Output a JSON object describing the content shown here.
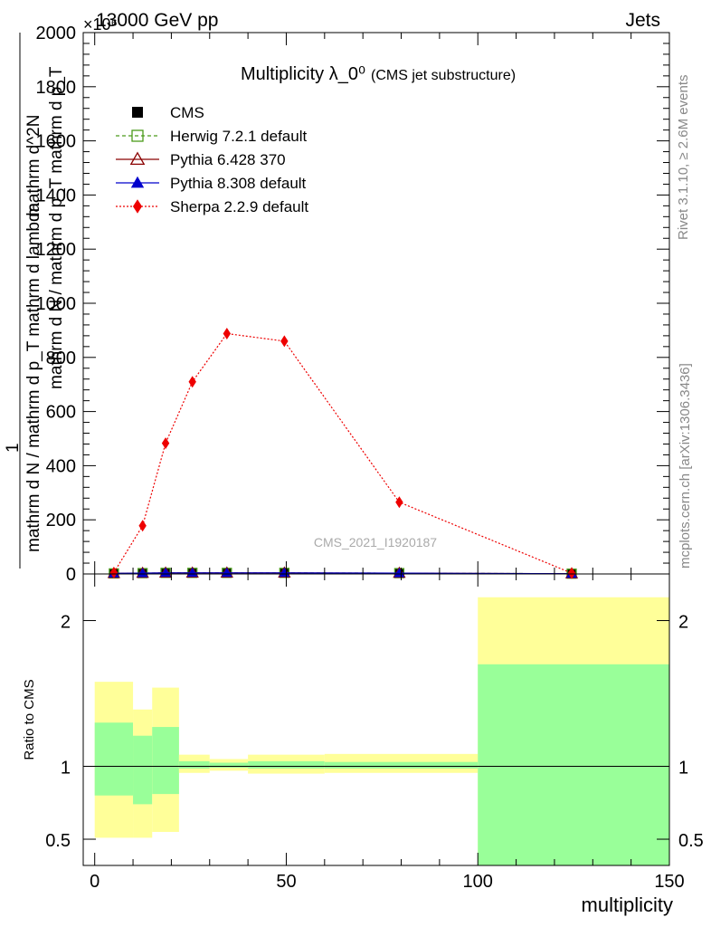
{
  "header": {
    "left": "13000 GeV pp",
    "right": "Jets",
    "exponent": "×10⁶"
  },
  "side_labels": {
    "rivet": "Rivet 3.1.10, ≥ 2.6M events",
    "mcplots": "mcplots.cern.ch [arXiv:1306.3436]"
  },
  "watermark": "CMS_2021_I1920187",
  "chart_data": [
    {
      "type": "line",
      "title": "Multiplicity λ_0⁰",
      "subtitle": "(CMS jet substructure)",
      "ylabel_main": "mathrm d N / mathrm d p_T mathrm d lambda",
      "ylabel_frac_num": "1",
      "ylabel_frac_den_line1": "mathrm d N / mathrm d p_T mathrm d p_T",
      "ylabel_frac_den_line2": "mathrm d^2N",
      "ylabel_top": "mathrm d^2N",
      "xlim": [
        -3,
        150
      ],
      "ylim": [
        0,
        2000
      ],
      "y_ticks": [
        0,
        200,
        400,
        600,
        800,
        1000,
        1200,
        1400,
        1600,
        1800,
        2000
      ],
      "y_tick_labels": [
        "0",
        "200",
        "400",
        "600",
        "800",
        "1000",
        "1200",
        "1400",
        "1600",
        "1800",
        "2000"
      ],
      "legend_placement": "top-left",
      "series": [
        {
          "name": "CMS",
          "color": "#000000",
          "marker": "square",
          "line": "none",
          "x": [
            5,
            12.5,
            18.5,
            25.5,
            34.5,
            49.5,
            79.5,
            124.5
          ],
          "y": [
            2,
            3,
            4,
            4,
            4,
            4,
            3,
            1
          ]
        },
        {
          "name": "Herwig 7.2.1 default",
          "color": "#4a9a1a",
          "marker": "open-square",
          "line": "dashed",
          "x": [
            5,
            12.5,
            18.5,
            25.5,
            34.5,
            49.5,
            79.5,
            124.5
          ],
          "y": [
            2,
            3,
            4,
            4,
            4,
            4,
            3,
            1
          ]
        },
        {
          "name": "Pythia 6.428 370",
          "color": "#8b0000",
          "marker": "open-triangle",
          "line": "solid",
          "x": [
            5,
            12.5,
            18.5,
            25.5,
            34.5,
            49.5,
            79.5,
            124.5
          ],
          "y": [
            2,
            3,
            4,
            4,
            4,
            4,
            3,
            1
          ]
        },
        {
          "name": "Pythia 8.308 default",
          "color": "#0000cc",
          "marker": "triangle",
          "line": "solid",
          "x": [
            5,
            12.5,
            18.5,
            25.5,
            34.5,
            49.5,
            79.5,
            124.5
          ],
          "y": [
            2,
            3,
            4,
            4,
            4,
            4,
            3,
            1
          ]
        },
        {
          "name": "Sherpa 2.2.9 default",
          "color": "#ee0000",
          "marker": "diamond",
          "line": "dotted",
          "x": [
            5,
            12.5,
            18.5,
            25.5,
            34.5,
            49.5,
            79.5,
            124.5
          ],
          "y": [
            5,
            178,
            483,
            710,
            888,
            860,
            265,
            3
          ]
        }
      ]
    },
    {
      "type": "area",
      "title": "",
      "xlabel": "multiplicity",
      "ylabel": "Ratio to CMS",
      "xlim": [
        -3,
        150
      ],
      "ylim": [
        0.32,
        2.32
      ],
      "x_ticks": [
        0,
        50,
        100,
        150
      ],
      "x_tick_labels": [
        "0",
        "50",
        "100",
        "150"
      ],
      "y_ticks": [
        0.5,
        1,
        2
      ],
      "y_tick_labels": [
        "0.5",
        "1",
        "2"
      ],
      "reference_line": 1,
      "bins": [
        {
          "x0": 0,
          "x1": 10,
          "stat_lo": 0.8,
          "stat_hi": 1.3,
          "tot_lo": 0.51,
          "tot_hi": 1.58
        },
        {
          "x0": 10,
          "x1": 15,
          "stat_lo": 0.74,
          "stat_hi": 1.21,
          "tot_lo": 0.51,
          "tot_hi": 1.39
        },
        {
          "x0": 15,
          "x1": 22,
          "stat_lo": 0.81,
          "stat_hi": 1.27,
          "tot_lo": 0.55,
          "tot_hi": 1.54
        },
        {
          "x0": 22,
          "x1": 30,
          "stat_lo": 0.985,
          "stat_hi": 1.035,
          "tot_lo": 0.955,
          "tot_hi": 1.08
        },
        {
          "x0": 30,
          "x1": 40,
          "stat_lo": 0.99,
          "stat_hi": 1.025,
          "tot_lo": 0.97,
          "tot_hi": 1.05
        },
        {
          "x0": 40,
          "x1": 60,
          "stat_lo": 0.985,
          "stat_hi": 1.035,
          "tot_lo": 0.95,
          "tot_hi": 1.08
        },
        {
          "x0": 60,
          "x1": 100,
          "stat_lo": 0.985,
          "stat_hi": 1.03,
          "tot_lo": 0.955,
          "tot_hi": 1.085
        },
        {
          "x0": 100,
          "x1": 150,
          "stat_lo": 0.32,
          "stat_hi": 1.7,
          "tot_lo": 0.32,
          "tot_hi": 2.16
        }
      ],
      "colors": {
        "stat": "#99ff99",
        "total": "#ffff99"
      }
    }
  ]
}
